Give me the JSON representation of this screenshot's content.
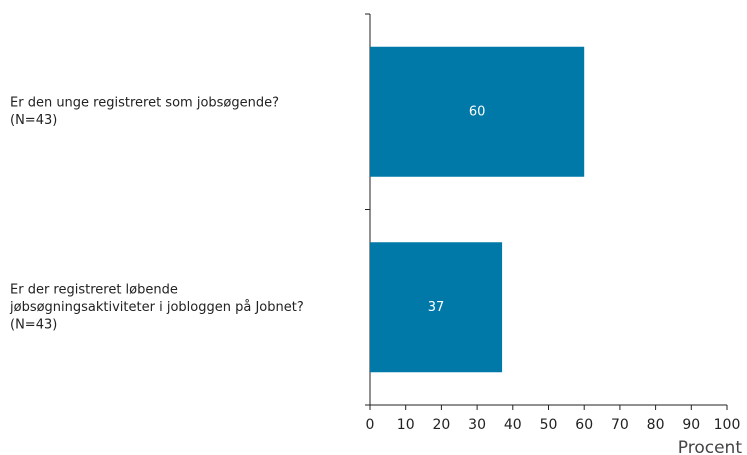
{
  "chart_data": {
    "type": "barh",
    "categories": [
      [
        "Er den unge registreret som jobsøgende?",
        "(N=43)"
      ],
      [
        "Er der registreret løbende",
        "jøbsøgningsaktiviteter i jobloggen på Jobnet?",
        "(N=43)"
      ]
    ],
    "values": [
      60,
      37
    ],
    "color": "#0079a8",
    "xlim": [
      0,
      100
    ],
    "xticks": [
      0,
      10,
      20,
      30,
      40,
      50,
      60,
      70,
      80,
      90,
      100
    ],
    "x_label": "Procent",
    "grid": false
  }
}
